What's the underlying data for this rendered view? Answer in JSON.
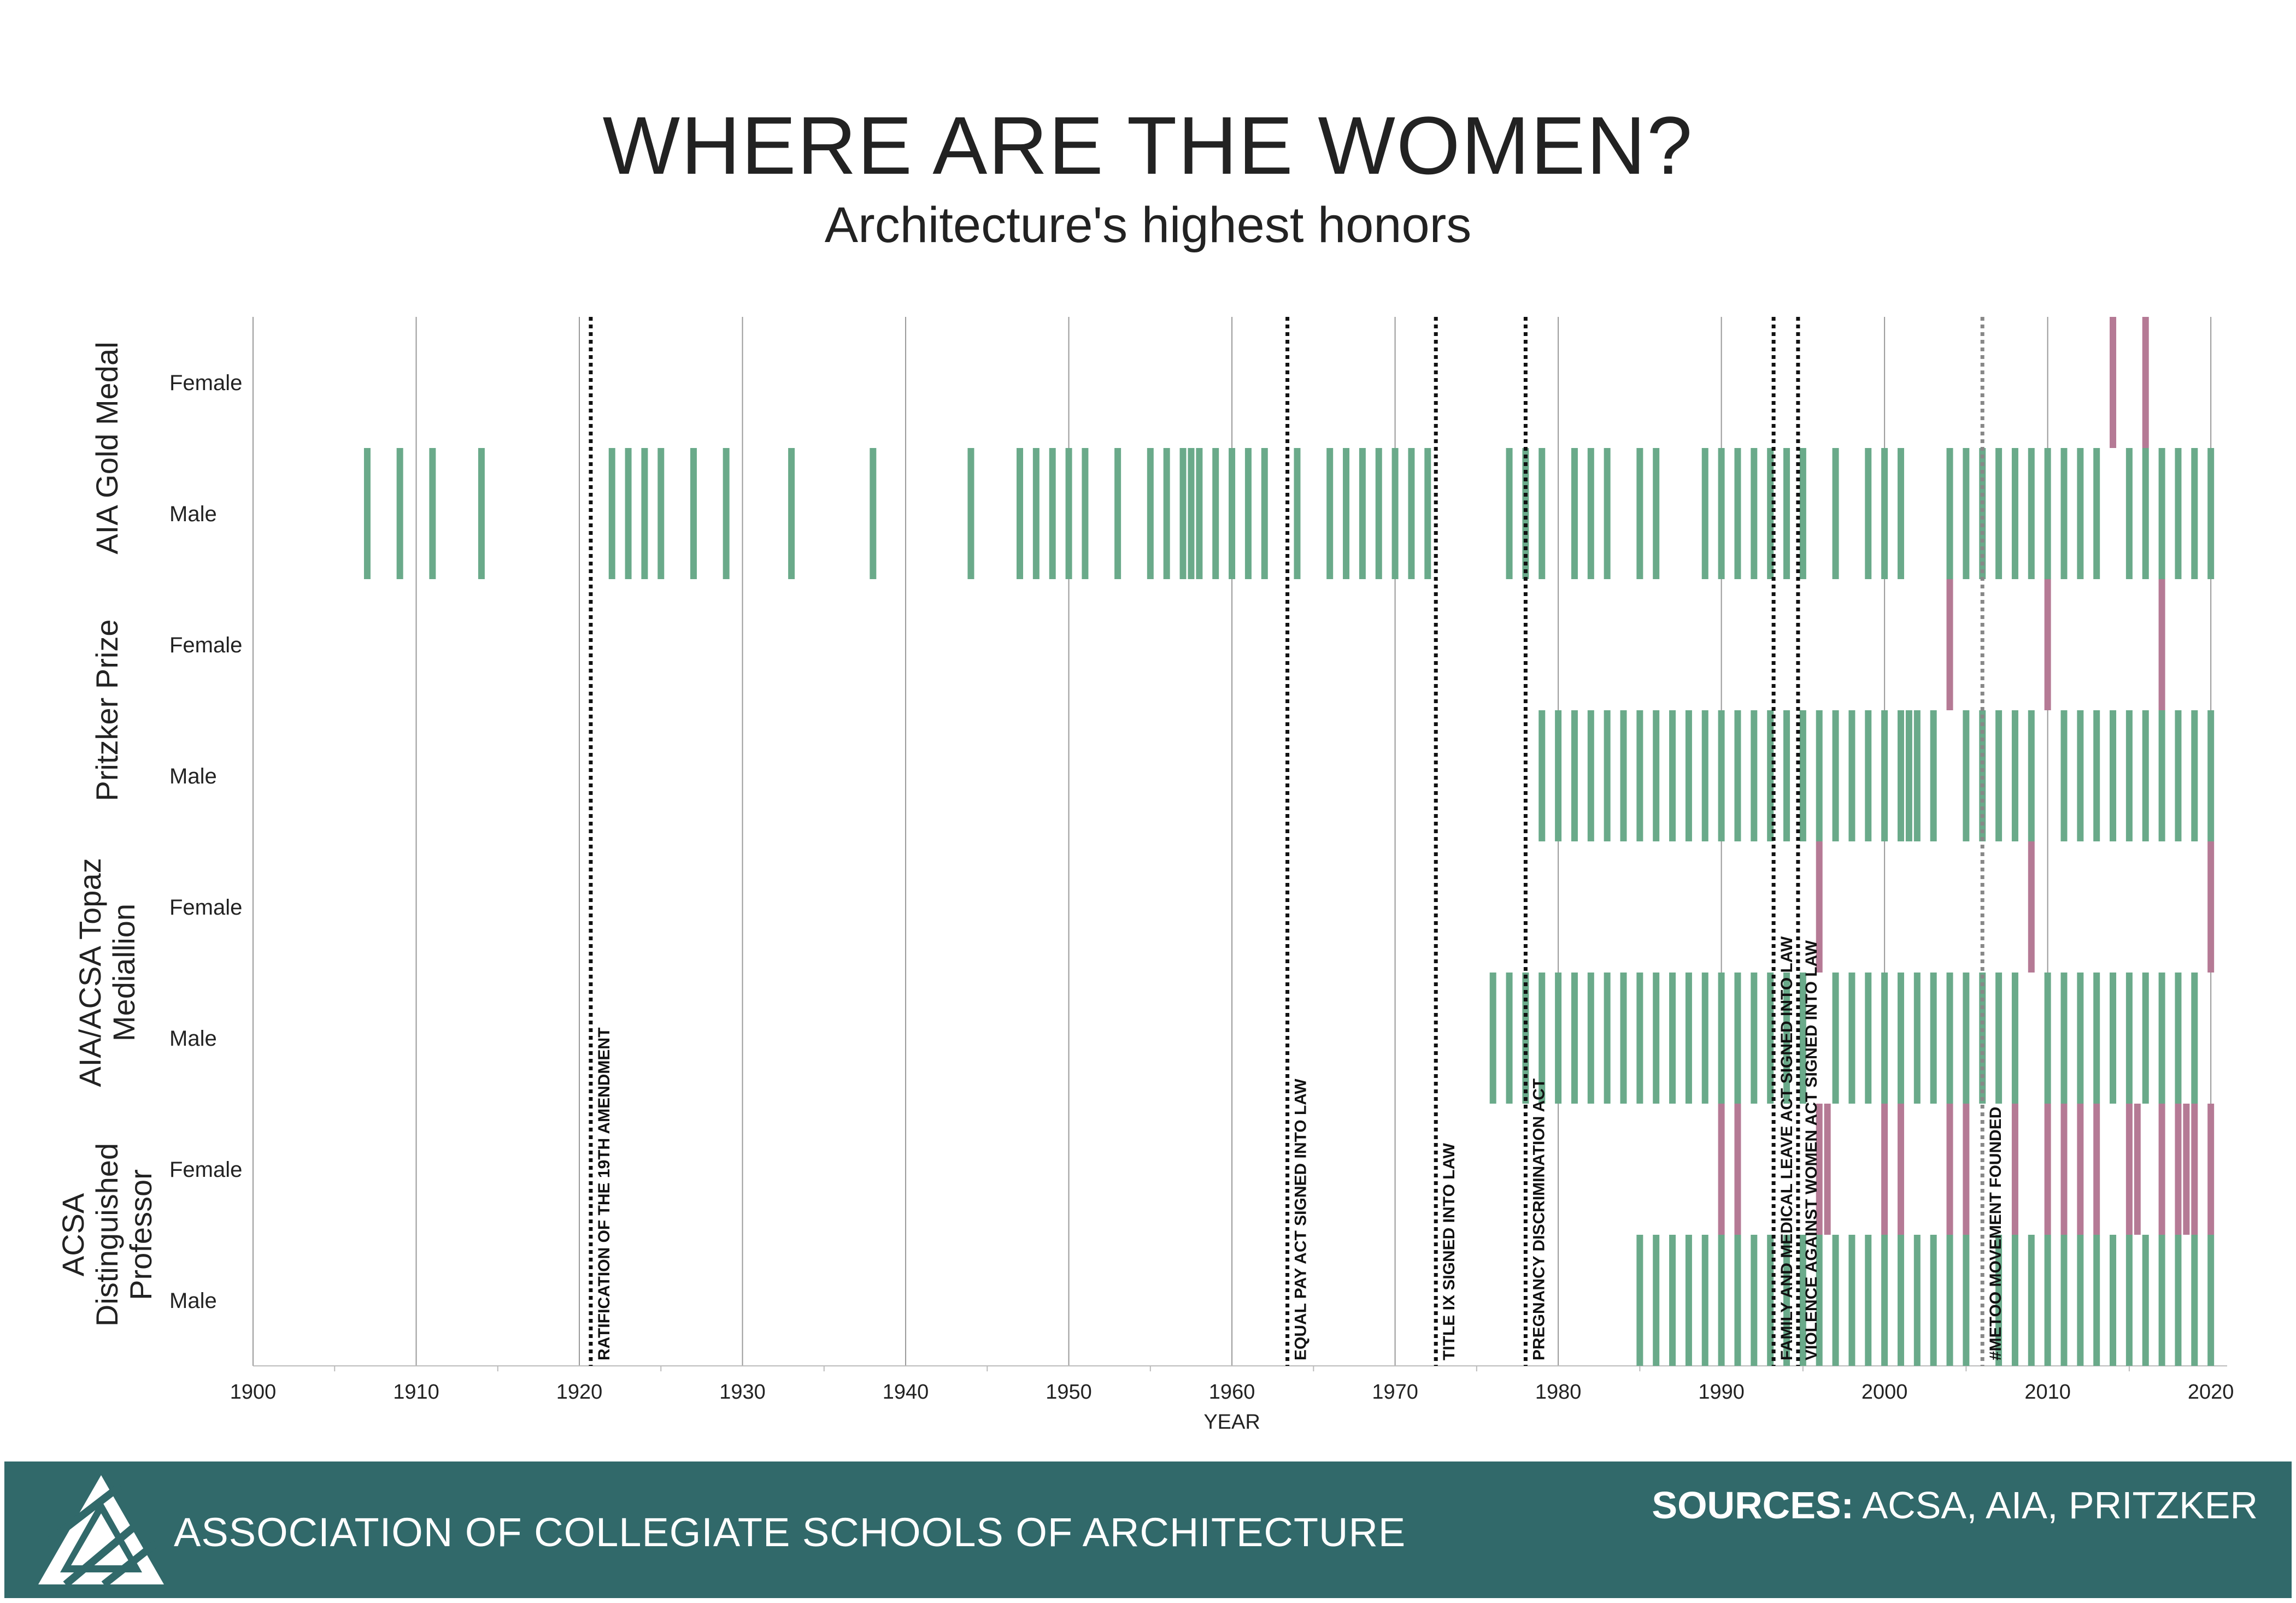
{
  "title": "WHERE ARE THE WOMEN?",
  "subtitle": "Architecture's highest honors",
  "footer": {
    "organization": "ASSOCIATION OF COLLEGIATE SCHOOLS OF ARCHITECTURE",
    "sources_label": "SOURCES:",
    "sources_text": "ACSA, AIA, PRITZKER"
  },
  "colors": {
    "male": "#6aaa8a",
    "female": "#b57a95",
    "footer_bg": "#31696a",
    "event_line": "#111111",
    "metoo_line": "#888888",
    "grid": "#999999"
  },
  "chart_data": {
    "type": "timeline",
    "xlabel": "YEAR",
    "xlim": [
      1900,
      2021
    ],
    "x_ticks": [
      1900,
      1910,
      1920,
      1930,
      1940,
      1950,
      1960,
      1970,
      1980,
      1990,
      2000,
      2010,
      2020
    ],
    "groups": [
      {
        "label": "AIA Gold Medal",
        "rows": [
          {
            "label": "Female",
            "series": "female",
            "years": [
              2014,
              2016
            ]
          },
          {
            "label": "Male",
            "series": "male",
            "years": [
              1907,
              1909,
              1911,
              1914,
              1922,
              1923,
              1924,
              1925,
              1927,
              1929,
              1933,
              1938,
              1944,
              1947,
              1948,
              1949,
              1950,
              1951,
              1953,
              1955,
              1956,
              1957,
              1957.5,
              1958,
              1959,
              1960,
              1961,
              1962,
              1964,
              1966,
              1967,
              1968,
              1969,
              1970,
              1971,
              1972,
              1977,
              1978,
              1979,
              1981,
              1982,
              1983,
              1985,
              1986,
              1989,
              1990,
              1991,
              1992,
              1993,
              1994,
              1995,
              1997,
              1999,
              2000,
              2001,
              2004,
              2005,
              2006,
              2007,
              2008,
              2009,
              2010,
              2011,
              2012,
              2013,
              2015,
              2016,
              2017,
              2018,
              2019,
              2020
            ]
          }
        ]
      },
      {
        "label": "Pritzker Prize",
        "rows": [
          {
            "label": "Female",
            "series": "female",
            "years": [
              2004,
              2010,
              2017
            ]
          },
          {
            "label": "Male",
            "series": "male",
            "years": [
              1979,
              1980,
              1981,
              1982,
              1983,
              1984,
              1985,
              1986,
              1987,
              1988,
              1989,
              1990,
              1991,
              1992,
              1993,
              1994,
              1995,
              1996,
              1997,
              1998,
              1999,
              2000,
              2001,
              2001.5,
              2002,
              2003,
              2005,
              2006,
              2007,
              2008,
              2009,
              2011,
              2012,
              2013,
              2014,
              2015,
              2016,
              2017,
              2018,
              2019,
              2020
            ]
          }
        ]
      },
      {
        "label": "AIA/ACSA Topaz Mediallion",
        "rows": [
          {
            "label": "Female",
            "series": "female",
            "years": [
              1996,
              2009,
              2020
            ]
          },
          {
            "label": "Male",
            "series": "male",
            "years": [
              1976,
              1977,
              1978,
              1979,
              1980,
              1981,
              1982,
              1983,
              1984,
              1985,
              1986,
              1987,
              1988,
              1989,
              1990,
              1991,
              1992,
              1993,
              1994,
              1995,
              1997,
              1998,
              1999,
              2000,
              2001,
              2002,
              2003,
              2004,
              2005,
              2006,
              2007,
              2008,
              2010,
              2011,
              2012,
              2013,
              2014,
              2015,
              2016,
              2017,
              2018,
              2019
            ]
          }
        ]
      },
      {
        "label": "ACSA Distinguished Professor",
        "rows": [
          {
            "label": "Female",
            "series": "female",
            "years": [
              1990,
              1991,
              1996,
              1996.5,
              2000,
              2001,
              2004,
              2005,
              2008,
              2010,
              2011,
              2012,
              2013,
              2015,
              2015.5,
              2017,
              2018,
              2018.5,
              2019,
              2020
            ]
          },
          {
            "label": "Male",
            "series": "male",
            "years": [
              1985,
              1986,
              1987,
              1988,
              1989,
              1990,
              1991,
              1992,
              1993,
              1994,
              1995,
              1996,
              1997,
              1998,
              1999,
              2000,
              2001,
              2002,
              2003,
              2004,
              2005,
              2007,
              2008,
              2009,
              2010,
              2011,
              2012,
              2013,
              2014,
              2015,
              2016,
              2017,
              2018,
              2019,
              2020
            ]
          }
        ]
      }
    ],
    "events": [
      {
        "year": 1920.7,
        "label": "RATIFICATION OF THE 19TH AMENDMENT",
        "style": "dotted"
      },
      {
        "year": 1963.4,
        "label": "EQUAL PAY ACT SIGNED INTO LAW",
        "style": "dotted"
      },
      {
        "year": 1972.5,
        "label": "TITLE IX SIGNED INTO LAW",
        "style": "dotted"
      },
      {
        "year": 1978.0,
        "label": "PREGNANCY DISCRIMINATION ACT",
        "style": "dotted"
      },
      {
        "year": 1993.2,
        "label": "FAMILY AND MEDICAL LEAVE ACT SIGNED INTO LAW",
        "style": "dotted"
      },
      {
        "year": 1994.7,
        "label": "VIOLENCE AGAINST WOMEN ACT SIGNED INTO LAW",
        "style": "dotted"
      },
      {
        "year": 2006.0,
        "label": "#METOO MOVEMENT FOUNDED",
        "style": "dotted-grey"
      }
    ]
  }
}
